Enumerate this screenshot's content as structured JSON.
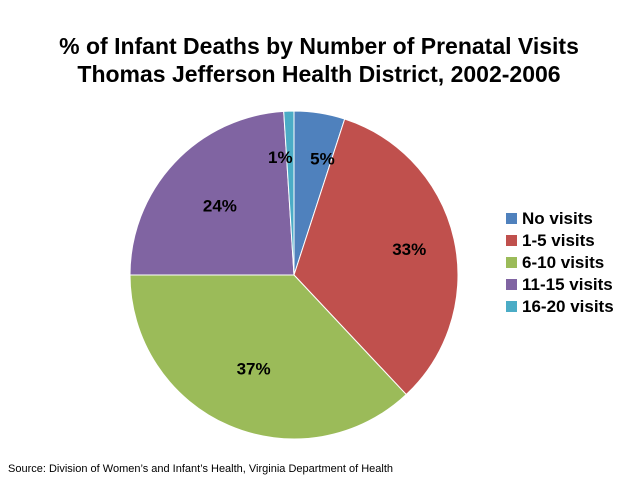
{
  "chart_data": {
    "type": "pie",
    "title_lines": [
      "% of Infant Deaths by Number of Prenatal Visits",
      "Thomas Jefferson Health District, 2002-2006"
    ],
    "categories": [
      "No visits",
      "1-5 visits",
      "6-10 visits",
      "11-15 visits",
      "16-20 visits"
    ],
    "values": [
      5,
      33,
      37,
      24,
      1
    ],
    "data_labels": [
      "5%",
      "33%",
      "37%",
      "24%",
      "1%"
    ],
    "colors": [
      "#4F81BD",
      "#C0504D",
      "#9BBB59",
      "#8064A2",
      "#4BACC6"
    ],
    "legend_position": "right"
  },
  "footer": {
    "source": "Source:  Division of Women’s and Infant’s Health, Virginia Department of Health"
  }
}
